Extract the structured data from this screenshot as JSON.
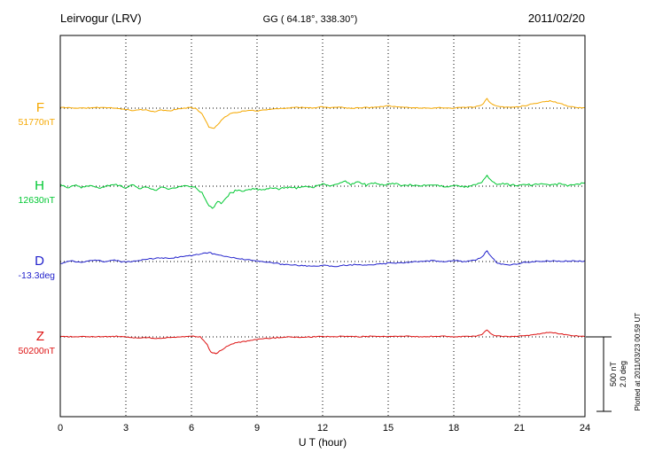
{
  "header": {
    "station": "Leirvogur (LRV)",
    "coords": "GG ( 64.18°, 338.30°)",
    "date": "2011/02/20"
  },
  "scalebar": {
    "nt_label": "500 nT",
    "deg_label": "2.0 deg"
  },
  "footer": {
    "plotted_note": "Plotted at 2011/03/23 00:59 UT"
  },
  "chart_data": {
    "type": "line",
    "title": "Leirvogur (LRV) magnetogram 2011/02/20",
    "xlabel": "U T (hour)",
    "x_range": [
      0,
      24
    ],
    "xticks": [
      0,
      3,
      6,
      9,
      12,
      15,
      18,
      21,
      24
    ],
    "grid": "dotted vertical at 3h intervals, dotted horizontal baselines",
    "scale": {
      "nT_per_div": 500,
      "deg_per_div": 2.0
    },
    "series": [
      {
        "name": "F",
        "baseline_value": "51770nT",
        "unit": "nT",
        "color": "#F5A800",
        "noise": 4,
        "seed": 11,
        "points": [
          [
            0,
            5
          ],
          [
            0.5,
            2
          ],
          [
            1,
            0
          ],
          [
            1.5,
            3
          ],
          [
            2,
            5
          ],
          [
            2.5,
            0
          ],
          [
            3,
            -8
          ],
          [
            3.3,
            -18
          ],
          [
            3.6,
            -8
          ],
          [
            4,
            -15
          ],
          [
            4.3,
            -25
          ],
          [
            4.6,
            -12
          ],
          [
            5,
            -18
          ],
          [
            5.4,
            -5
          ],
          [
            5.8,
            3
          ],
          [
            6.2,
            0
          ],
          [
            6.5,
            -40
          ],
          [
            6.8,
            -125
          ],
          [
            7,
            -135
          ],
          [
            7.2,
            -110
          ],
          [
            7.5,
            -60
          ],
          [
            7.8,
            -35
          ],
          [
            8.2,
            -25
          ],
          [
            8.6,
            -15
          ],
          [
            9,
            -18
          ],
          [
            9.5,
            -8
          ],
          [
            10,
            -3
          ],
          [
            10.5,
            3
          ],
          [
            11,
            6
          ],
          [
            11.5,
            0
          ],
          [
            12,
            10
          ],
          [
            12.4,
            2
          ],
          [
            12.8,
            8
          ],
          [
            13.2,
            0
          ],
          [
            14,
            4
          ],
          [
            14.6,
            10
          ],
          [
            15,
            18
          ],
          [
            15.4,
            8
          ],
          [
            16,
            4
          ],
          [
            16.6,
            0
          ],
          [
            17.2,
            3
          ],
          [
            18,
            2
          ],
          [
            18.6,
            6
          ],
          [
            19,
            10
          ],
          [
            19.3,
            20
          ],
          [
            19.5,
            65
          ],
          [
            19.7,
            30
          ],
          [
            20,
            12
          ],
          [
            20.5,
            6
          ],
          [
            21,
            10
          ],
          [
            21.5,
            25
          ],
          [
            22,
            40
          ],
          [
            22.4,
            48
          ],
          [
            22.8,
            35
          ],
          [
            23.2,
            15
          ],
          [
            23.6,
            5
          ],
          [
            24,
            2
          ]
        ]
      },
      {
        "name": "H",
        "baseline_value": "12630nT",
        "unit": "nT",
        "color": "#00C832",
        "noise": 9,
        "seed": 22,
        "points": [
          [
            0,
            15
          ],
          [
            0.3,
            -10
          ],
          [
            0.6,
            8
          ],
          [
            1,
            -5
          ],
          [
            1.4,
            10
          ],
          [
            1.8,
            -12
          ],
          [
            2.2,
            5
          ],
          [
            2.6,
            12
          ],
          [
            3,
            -12
          ],
          [
            3.3,
            14
          ],
          [
            3.6,
            -18
          ],
          [
            4,
            -4
          ],
          [
            4.3,
            -28
          ],
          [
            4.6,
            -8
          ],
          [
            5,
            -20
          ],
          [
            5.4,
            -6
          ],
          [
            5.8,
            2
          ],
          [
            6.2,
            -8
          ],
          [
            6.5,
            -45
          ],
          [
            6.8,
            -130
          ],
          [
            7,
            -145
          ],
          [
            7.2,
            -95
          ],
          [
            7.4,
            -115
          ],
          [
            7.7,
            -55
          ],
          [
            8,
            -30
          ],
          [
            8.4,
            -35
          ],
          [
            8.8,
            -18
          ],
          [
            9.2,
            -25
          ],
          [
            9.6,
            -10
          ],
          [
            10,
            -18
          ],
          [
            10.4,
            -5
          ],
          [
            10.8,
            -14
          ],
          [
            11.2,
            2
          ],
          [
            11.6,
            -8
          ],
          [
            12,
            18
          ],
          [
            12.3,
            -4
          ],
          [
            12.6,
            12
          ],
          [
            13,
            32
          ],
          [
            13.3,
            12
          ],
          [
            13.6,
            26
          ],
          [
            14,
            10
          ],
          [
            14.4,
            22
          ],
          [
            14.8,
            8
          ],
          [
            15.2,
            16
          ],
          [
            15.6,
            4
          ],
          [
            16,
            12
          ],
          [
            16.5,
            2
          ],
          [
            17,
            8
          ],
          [
            17.5,
            -2
          ],
          [
            18,
            6
          ],
          [
            18.5,
            -4
          ],
          [
            19,
            8
          ],
          [
            19.3,
            25
          ],
          [
            19.5,
            78
          ],
          [
            19.7,
            35
          ],
          [
            20,
            8
          ],
          [
            20.4,
            16
          ],
          [
            20.8,
            4
          ],
          [
            21.2,
            12
          ],
          [
            21.6,
            6
          ],
          [
            22,
            18
          ],
          [
            22.4,
            8
          ],
          [
            22.8,
            14
          ],
          [
            23.2,
            6
          ],
          [
            23.6,
            12
          ],
          [
            24,
            22
          ]
        ]
      },
      {
        "name": "D",
        "baseline_value": "-13.3deg",
        "unit": "deg",
        "color": "#2222CC",
        "noise": 0.02,
        "seed": 33,
        "points": [
          [
            0,
            -0.06
          ],
          [
            0.5,
            0.02
          ],
          [
            1,
            -0.03
          ],
          [
            1.5,
            0.04
          ],
          [
            2,
            0
          ],
          [
            2.5,
            0.03
          ],
          [
            3,
            -0.02
          ],
          [
            3.5,
            0.02
          ],
          [
            4,
            0.06
          ],
          [
            4.5,
            0.1
          ],
          [
            5,
            0.08
          ],
          [
            5.5,
            0.13
          ],
          [
            6,
            0.16
          ],
          [
            6.4,
            0.2
          ],
          [
            6.8,
            0.24
          ],
          [
            7.2,
            0.18
          ],
          [
            7.6,
            0.13
          ],
          [
            8,
            0.09
          ],
          [
            8.5,
            0.05
          ],
          [
            9,
            0.02
          ],
          [
            9.5,
            -0.02
          ],
          [
            10,
            -0.06
          ],
          [
            10.5,
            -0.09
          ],
          [
            11,
            -0.11
          ],
          [
            11.5,
            -0.13
          ],
          [
            12,
            -0.1
          ],
          [
            12.5,
            -0.13
          ],
          [
            13,
            -0.1
          ],
          [
            13.5,
            -0.08
          ],
          [
            14,
            -0.1
          ],
          [
            14.5,
            -0.07
          ],
          [
            15,
            -0.05
          ],
          [
            15.5,
            -0.04
          ],
          [
            16,
            -0.02
          ],
          [
            16.5,
            0
          ],
          [
            17,
            0.02
          ],
          [
            17.5,
            0
          ],
          [
            18,
            0.02
          ],
          [
            18.5,
            0
          ],
          [
            19,
            0.04
          ],
          [
            19.3,
            0.12
          ],
          [
            19.5,
            0.3
          ],
          [
            19.7,
            0.12
          ],
          [
            20,
            -0.04
          ],
          [
            20.4,
            -0.1
          ],
          [
            20.8,
            -0.07
          ],
          [
            21.2,
            -0.03
          ],
          [
            21.6,
            -0.01
          ],
          [
            22,
            0.01
          ],
          [
            22.5,
            0.02
          ],
          [
            23,
            0
          ],
          [
            23.5,
            0.02
          ],
          [
            24,
            0.01
          ]
        ]
      },
      {
        "name": "Z",
        "baseline_value": "50200nT",
        "unit": "nT",
        "color": "#DD1111",
        "noise": 4,
        "seed": 44,
        "points": [
          [
            0,
            4
          ],
          [
            0.6,
            0
          ],
          [
            1.2,
            3
          ],
          [
            1.8,
            0
          ],
          [
            2.4,
            4
          ],
          [
            3,
            0
          ],
          [
            3.5,
            -8
          ],
          [
            4,
            -4
          ],
          [
            4.5,
            -12
          ],
          [
            5,
            -4
          ],
          [
            5.5,
            0
          ],
          [
            6,
            4
          ],
          [
            6.4,
            0
          ],
          [
            6.7,
            -45
          ],
          [
            6.9,
            -105
          ],
          [
            7.1,
            -110
          ],
          [
            7.3,
            -95
          ],
          [
            7.6,
            -65
          ],
          [
            8,
            -40
          ],
          [
            8.5,
            -28
          ],
          [
            9,
            -15
          ],
          [
            9.5,
            -10
          ],
          [
            10,
            -5
          ],
          [
            10.5,
            -1
          ],
          [
            11,
            -4
          ],
          [
            11.5,
            0
          ],
          [
            12,
            4
          ],
          [
            12.5,
            0
          ],
          [
            13,
            4
          ],
          [
            13.6,
            1
          ],
          [
            14.2,
            4
          ],
          [
            15,
            2
          ],
          [
            15.8,
            5
          ],
          [
            16.6,
            1
          ],
          [
            17.4,
            4
          ],
          [
            18,
            1
          ],
          [
            18.6,
            4
          ],
          [
            19,
            6
          ],
          [
            19.3,
            15
          ],
          [
            19.5,
            50
          ],
          [
            19.7,
            20
          ],
          [
            20,
            6
          ],
          [
            20.5,
            2
          ],
          [
            21,
            5
          ],
          [
            21.5,
            12
          ],
          [
            22,
            22
          ],
          [
            22.3,
            30
          ],
          [
            22.7,
            26
          ],
          [
            23.1,
            14
          ],
          [
            23.5,
            6
          ],
          [
            24,
            4
          ]
        ]
      }
    ]
  }
}
